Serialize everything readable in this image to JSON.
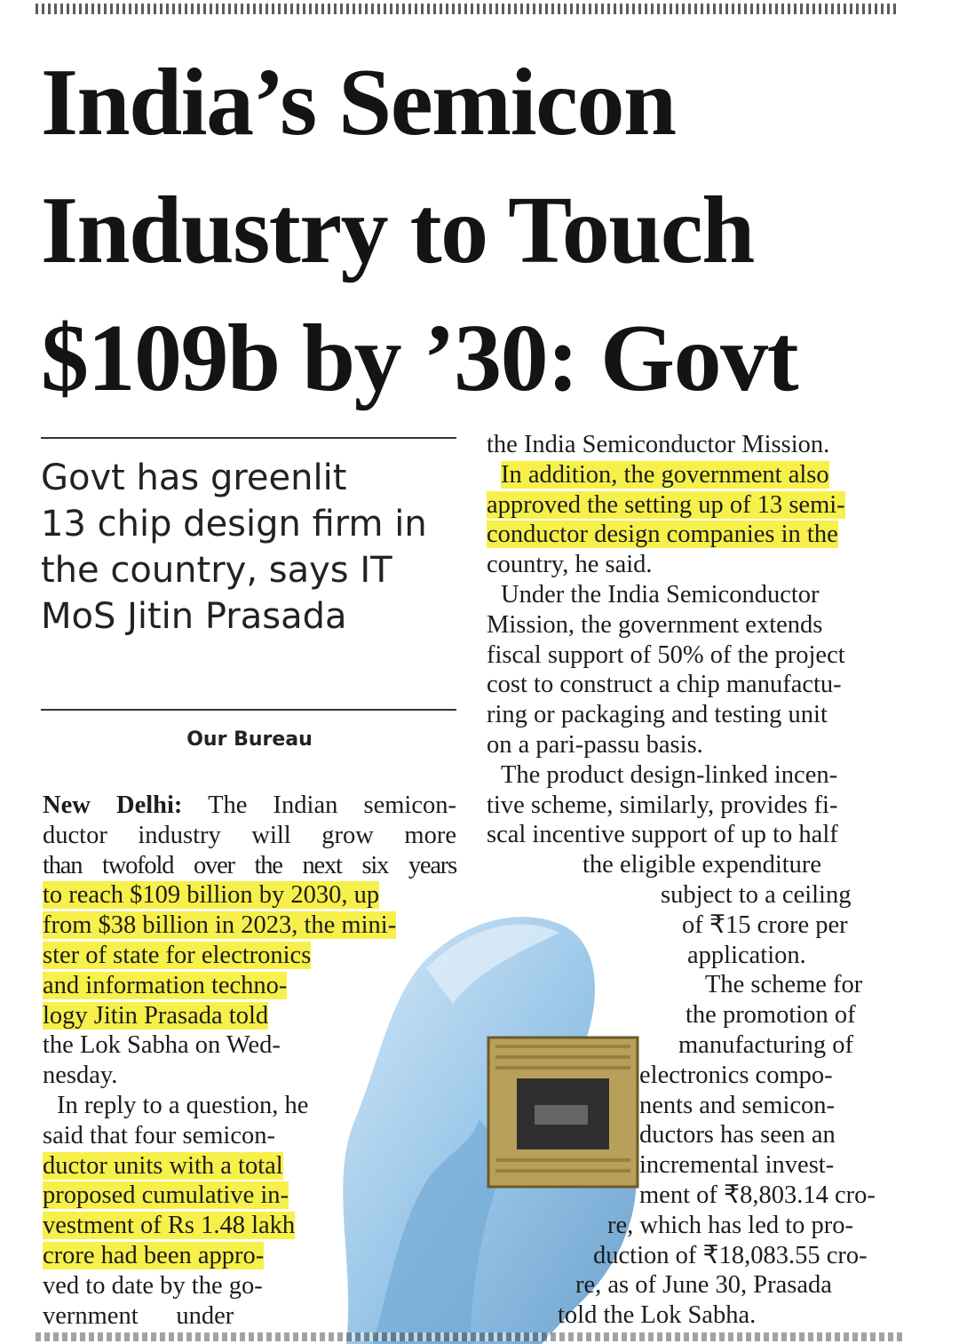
{
  "headline": {
    "lines": [
      "India’s Semicon",
      "Industry to Touch",
      "$109b by ’30: Govt"
    ]
  },
  "deck": {
    "lines": [
      "Govt has greenlit",
      "13 chip design firm in",
      "the country, says IT",
      "MoS Jitin Prasada"
    ]
  },
  "byline": "Our Bureau",
  "col1": {
    "lead": "New Delhi:",
    "lines": [
      " The Indian semicon-",
      "ductor industry will grow more",
      "than twofold over the next six years",
      "to reach $109 billion by 2030, up",
      "from $38 billion in 2023, the mini-",
      "ster of state for electronics",
      "and information techno-",
      "logy Jitin Prasada told",
      "the Lok Sabha on Wed-",
      "nesday.",
      "In reply to a question, he",
      "said that four semicon-",
      "ductor units with a total",
      "proposed cumulative in-",
      "vestment of Rs 1.48 lakh",
      "crore had been appro-",
      "ved to date by the go-",
      "vernment      under"
    ]
  },
  "col2": {
    "lines": [
      "the India Semiconductor Mission.",
      "In addition, the government also",
      "approved the setting up of 13 semi-",
      "conductor design companies in the",
      "country, he said.",
      "Under the India Semiconductor",
      "Mission, the government extends",
      "fiscal support of 50% of the project",
      "cost to construct a chip manufactu-",
      "ring or packaging and testing unit",
      "on a pari-passu basis.",
      "The product design-linked incen-",
      "tive scheme, similarly, provides fi-",
      "scal incentive support of up to half",
      "the eligible expenditure",
      "subject to a ceiling",
      "of ₹15 crore per",
      "application.",
      "The scheme for",
      "the promotion of",
      "manufacturing of",
      "electronics compo-",
      "nents and semicon-",
      "ductors has seen an",
      "incremental invest-",
      "ment of ₹8,803.14 cro-",
      "re, which has led to pro-",
      "duction of ₹18,083.55 cro-",
      "re, as of June 30, Prasada",
      "told the Lok Sabha."
    ]
  },
  "colors": {
    "highlight": "#f7f04a",
    "glove": "#8fc0e6",
    "chip": "#b8a05a"
  }
}
